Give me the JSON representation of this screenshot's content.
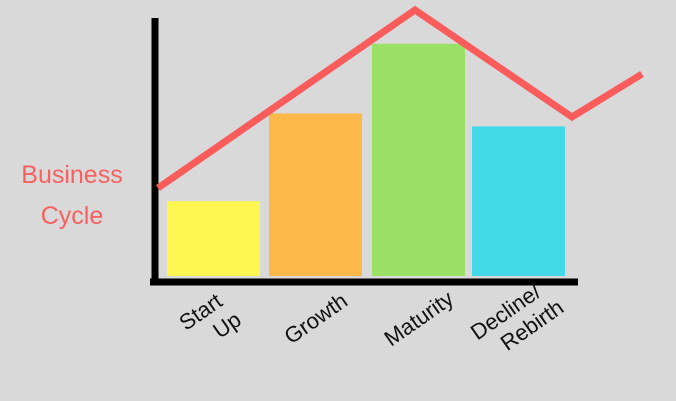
{
  "chart_data": {
    "type": "bar",
    "y_label": [
      "Business",
      "Cycle"
    ],
    "categories": [
      [
        "Start",
        "Up"
      ],
      [
        "Growth"
      ],
      [
        "Maturity"
      ],
      [
        "Decline/",
        "Rebirth"
      ]
    ],
    "values": [
      29,
      63,
      90,
      58
    ],
    "colors": [
      "#fef752",
      "#fdb84a",
      "#9be066",
      "#44d9e6"
    ],
    "ylim": [
      0,
      100
    ]
  }
}
